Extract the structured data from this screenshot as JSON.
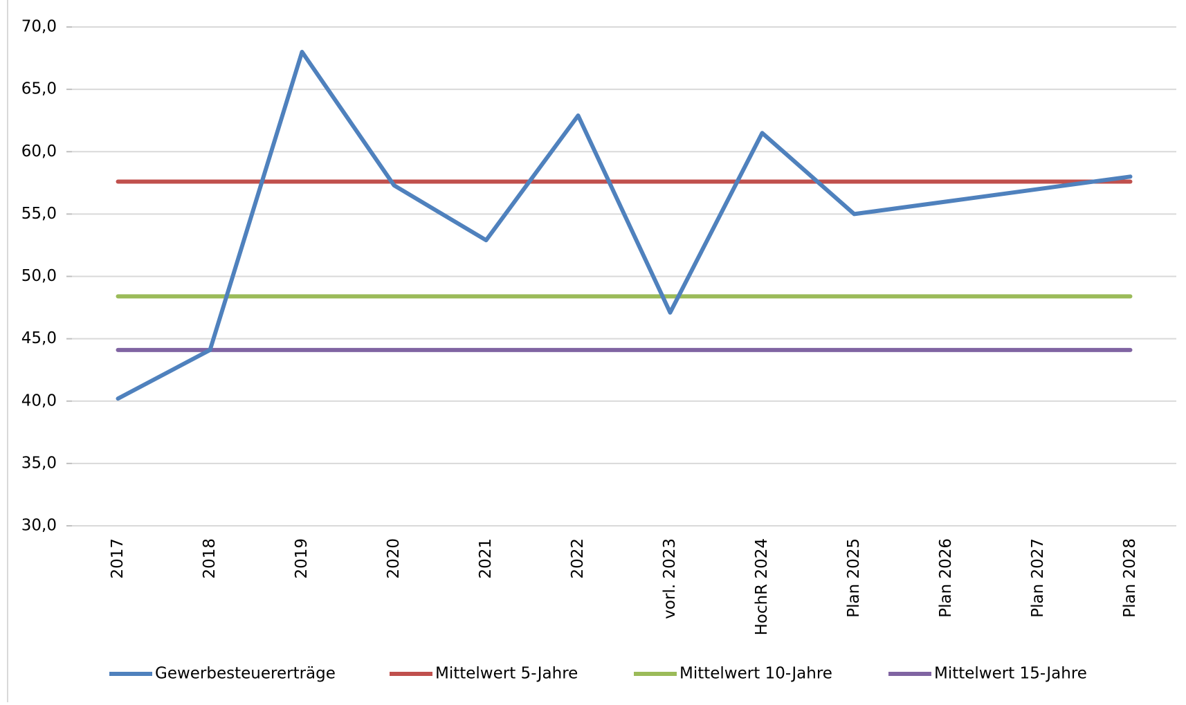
{
  "chart_data": {
    "type": "line",
    "categories": [
      "2017",
      "2018",
      "2019",
      "2020",
      "2021",
      "2022",
      "vorl. 2023",
      "HochR 2024",
      "Plan 2025",
      "Plan 2026",
      "Plan 2027",
      "Plan 2028"
    ],
    "series": [
      {
        "name": "Gewerbesteuererträge",
        "color": "#4f81bd",
        "values": [
          40.2,
          44.1,
          68.0,
          57.3,
          52.9,
          62.9,
          47.1,
          61.5,
          55.0,
          56.0,
          57.0,
          58.0
        ]
      },
      {
        "name": "Mittelwert 5-Jahre",
        "color": "#c0504d",
        "values": [
          57.6,
          57.6,
          57.6,
          57.6,
          57.6,
          57.6,
          57.6,
          57.6,
          57.6,
          57.6,
          57.6,
          57.6
        ]
      },
      {
        "name": "Mittelwert 10-Jahre",
        "color": "#9bbb59",
        "values": [
          48.4,
          48.4,
          48.4,
          48.4,
          48.4,
          48.4,
          48.4,
          48.4,
          48.4,
          48.4,
          48.4,
          48.4
        ]
      },
      {
        "name": "Mittelwert 15-Jahre",
        "color": "#8064a2",
        "values": [
          44.1,
          44.1,
          44.1,
          44.1,
          44.1,
          44.1,
          44.1,
          44.1,
          44.1,
          44.1,
          44.1,
          44.1
        ]
      }
    ],
    "ylim": [
      30,
      70
    ],
    "yticks": [
      {
        "value": 30,
        "label": "30,0"
      },
      {
        "value": 35,
        "label": "35,0"
      },
      {
        "value": 40,
        "label": "40,0"
      },
      {
        "value": 45,
        "label": "45,0"
      },
      {
        "value": 50,
        "label": "50,0"
      },
      {
        "value": 55,
        "label": "55,0"
      },
      {
        "value": 60,
        "label": "60,0"
      },
      {
        "value": 65,
        "label": "65,0"
      },
      {
        "value": 70,
        "label": "70,0"
      }
    ],
    "grid": true,
    "legend": "bottom"
  }
}
